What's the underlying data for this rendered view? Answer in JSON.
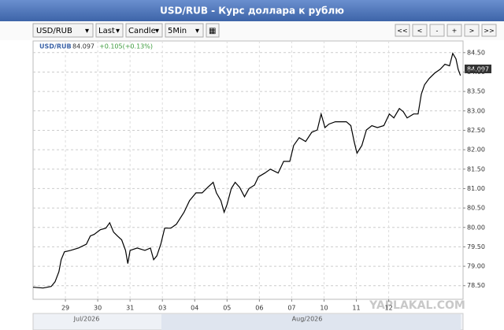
{
  "header": {
    "title": "USD/RUB - Курс доллара к рублю"
  },
  "toolbar": {
    "symbol": "USD/RUB",
    "price": "Last",
    "style": "Candle",
    "interval": "5Min",
    "nav": [
      "<<",
      "<",
      "-",
      "+",
      ">",
      ">>"
    ]
  },
  "watermark": "YAPLAKAL.COM",
  "navigator": {
    "months": [
      "Jul/2026",
      "Aug/2026"
    ]
  },
  "chart_data": {
    "type": "line",
    "last_value": "84.097",
    "change": "+0.105(+0.13%)",
    "grid": true,
    "xlim": [
      0,
      13.3
    ],
    "xticks": [
      {
        "value": 1,
        "label": "29"
      },
      {
        "value": 2,
        "label": "30"
      },
      {
        "value": 3,
        "label": "31"
      },
      {
        "value": 4,
        "label": "03"
      },
      {
        "value": 5,
        "label": "04"
      },
      {
        "value": 6,
        "label": "05"
      },
      {
        "value": 7,
        "label": "06"
      },
      {
        "value": 8,
        "label": "07"
      },
      {
        "value": 9,
        "label": "10"
      },
      {
        "value": 10,
        "label": "11"
      },
      {
        "value": 11,
        "label": "12"
      }
    ],
    "ylim": [
      78.15,
      84.8
    ],
    "yticks": [
      {
        "value": 78.5,
        "label": "78.50"
      },
      {
        "value": 79,
        "label": "79.00"
      },
      {
        "value": 79.5,
        "label": "79.50"
      },
      {
        "value": 80,
        "label": "80.00"
      },
      {
        "value": 80.5,
        "label": "80.50"
      },
      {
        "value": 81,
        "label": "81.00"
      },
      {
        "value": 81.5,
        "label": "81.50"
      },
      {
        "value": 82,
        "label": "82.00"
      },
      {
        "value": 82.5,
        "label": "82.50"
      },
      {
        "value": 83,
        "label": "83.00"
      },
      {
        "value": 83.5,
        "label": "83.50"
      },
      {
        "value": 84,
        "label": "84.00"
      },
      {
        "value": 84.5,
        "label": "84.50"
      }
    ],
    "series": [
      {
        "name": "USD/RUB",
        "color": "#000000",
        "x": [
          0,
          0.31,
          0.56,
          0.68,
          0.8,
          0.87,
          0.97,
          1.16,
          1.4,
          1.65,
          1.77,
          1.89,
          2.08,
          2.25,
          2.37,
          2.49,
          2.61,
          2.74,
          2.86,
          2.93,
          3.0,
          3.22,
          3.46,
          3.63,
          3.73,
          3.83,
          3.95,
          4.07,
          4.26,
          4.43,
          4.67,
          4.84,
          5.04,
          5.23,
          5.4,
          5.57,
          5.67,
          5.81,
          5.91,
          6.0,
          6.13,
          6.25,
          6.39,
          6.54,
          6.68,
          6.85,
          6.97,
          7.17,
          7.34,
          7.58,
          7.75,
          7.94,
          8.06,
          8.23,
          8.43,
          8.62,
          8.79,
          8.91,
          9.03,
          9.15,
          9.35,
          9.52,
          9.69,
          9.83,
          9.93,
          10.02,
          10.17,
          10.31,
          10.48,
          10.65,
          10.85,
          11.02,
          11.16,
          11.33,
          11.45,
          11.57,
          11.77,
          11.91,
          12.01,
          12.11,
          12.25,
          12.42,
          12.59,
          12.74,
          12.88,
          12.98,
          13.08,
          13.15,
          13.22
        ],
        "values": [
          78.46,
          78.44,
          78.48,
          78.6,
          78.86,
          79.17,
          79.37,
          79.41,
          79.47,
          79.57,
          79.78,
          79.82,
          79.94,
          79.98,
          80.12,
          79.88,
          79.78,
          79.68,
          79.41,
          79.07,
          79.41,
          79.47,
          79.41,
          79.47,
          79.17,
          79.27,
          79.57,
          79.98,
          79.98,
          80.08,
          80.39,
          80.69,
          80.89,
          80.89,
          81.03,
          81.16,
          80.89,
          80.69,
          80.39,
          80.59,
          81.0,
          81.16,
          81.03,
          80.79,
          81.0,
          81.09,
          81.3,
          81.4,
          81.5,
          81.4,
          81.7,
          81.7,
          82.11,
          82.31,
          82.21,
          82.45,
          82.51,
          82.92,
          82.57,
          82.66,
          82.72,
          82.72,
          82.72,
          82.62,
          82.21,
          81.91,
          82.11,
          82.51,
          82.62,
          82.57,
          82.62,
          82.92,
          82.82,
          83.06,
          82.98,
          82.82,
          82.92,
          82.92,
          83.43,
          83.67,
          83.83,
          83.97,
          84.07,
          84.2,
          84.16,
          84.48,
          84.34,
          84.07,
          83.91
        ]
      }
    ]
  }
}
